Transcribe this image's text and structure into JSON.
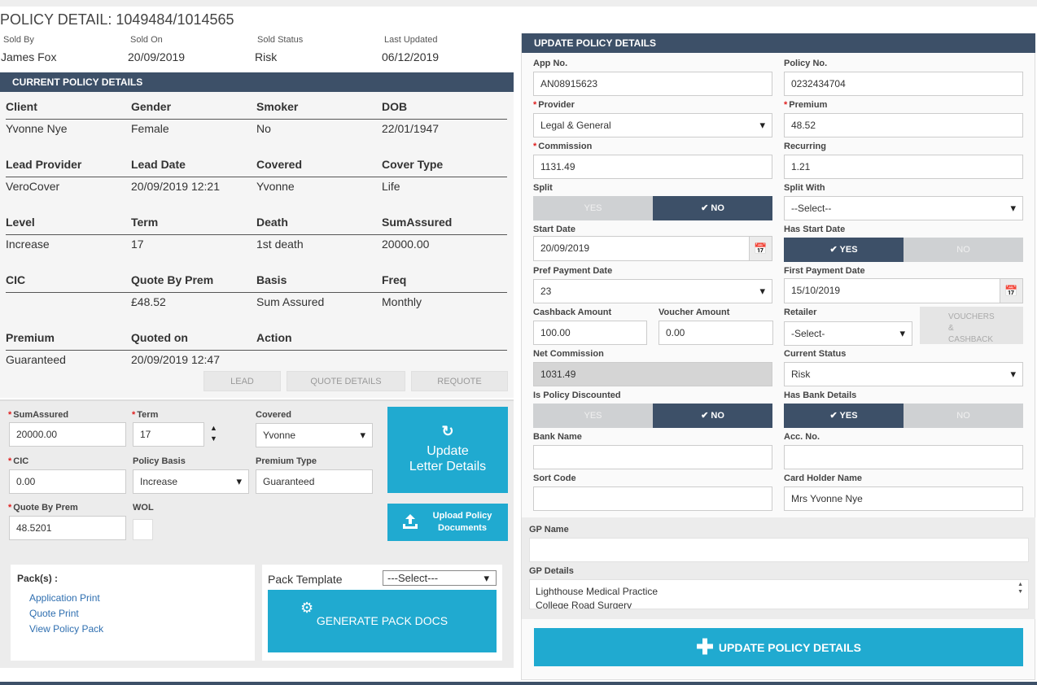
{
  "header": {
    "title": "POLICY DETAIL: 1049484/1014565",
    "meta": [
      {
        "label": "Sold By",
        "value": "James Fox"
      },
      {
        "label": "Sold On",
        "value": "20/09/2019"
      },
      {
        "label": "Sold Status",
        "value": "Risk"
      },
      {
        "label": "Last Updated",
        "value": "06/12/2019"
      }
    ]
  },
  "current": {
    "heading": "CURRENT POLICY DETAILS",
    "rows": [
      {
        "labels": [
          "Client",
          "Gender",
          "Smoker",
          "DOB"
        ],
        "values": [
          "Yvonne Nye",
          "Female",
          "No",
          "22/01/1947"
        ]
      },
      {
        "labels": [
          "Lead Provider",
          "Lead Date",
          "Covered",
          "Cover Type"
        ],
        "values": [
          "VeroCover",
          "20/09/2019 12:21",
          "Yvonne",
          "Life"
        ]
      },
      {
        "labels": [
          "Level",
          "Term",
          "Death",
          "SumAssured"
        ],
        "values": [
          "Increase",
          "17",
          "1st death",
          "20000.00"
        ]
      },
      {
        "labels": [
          "CIC",
          "Quote By Prem",
          "Basis",
          "Freq"
        ],
        "values": [
          "",
          "£48.52",
          "Sum Assured",
          "Monthly"
        ]
      },
      {
        "labels": [
          "Premium",
          "Quoted on",
          "Action",
          ""
        ],
        "values": [
          "Guaranteed",
          "20/09/2019 12:47",
          "",
          ""
        ]
      }
    ],
    "buttons": {
      "lead": "LEAD",
      "quote_details": "QUOTE DETAILS",
      "requote": "REQUOTE"
    }
  },
  "letter_form": {
    "sum_assured_label": "SumAssured",
    "sum_assured": "20000.00",
    "term_label": "Term",
    "term": "17",
    "covered_label": "Covered",
    "covered": "Yvonne",
    "cic_label": "CIC",
    "cic": "0.00",
    "policy_basis_label": "Policy Basis",
    "policy_basis": "Increase",
    "premium_type_label": "Premium Type",
    "premium_type": "Guaranteed",
    "quote_by_prem_label": "Quote By Prem",
    "quote_by_prem": "48.5201",
    "wol_label": "WOL",
    "update_letter_line1": "Update",
    "update_letter_line2": "Letter Details",
    "upload_line1": "Upload Policy",
    "upload_line2": "Documents"
  },
  "packs": {
    "title": "Pack(s) :",
    "links": [
      "Application Print",
      "Quote Print",
      "View Policy Pack"
    ],
    "template_label": "Pack Template",
    "template_select": "---Select---",
    "generate": "GENERATE PACK DOCS"
  },
  "update": {
    "heading": "UPDATE POLICY DETAILS",
    "app_no_label": "App No.",
    "app_no": "AN08915623",
    "policy_no_label": "Policy No.",
    "policy_no": "0232434704",
    "provider_label": "Provider",
    "provider": "Legal & General",
    "premium_label": "Premium",
    "premium": "48.52",
    "commission_label": "Commission",
    "commission": "1131.49",
    "recurring_label": "Recurring",
    "recurring": "1.21",
    "split_label": "Split",
    "yes": "YES",
    "no": "NO",
    "split_with_label": "Split With",
    "split_with": "--Select--",
    "start_date_label": "Start Date",
    "start_date": "20/09/2019",
    "has_start_date_label": "Has Start Date",
    "pref_payment_label": "Pref Payment Date",
    "pref_payment": "23",
    "first_payment_label": "First Payment Date",
    "first_payment": "15/10/2019",
    "cashback_label": "Cashback Amount",
    "cashback": "100.00",
    "voucher_label": "Voucher Amount",
    "voucher": "0.00",
    "retailer_label": "Retailer",
    "retailer": "-Select-",
    "vouchers_btn_l1": "VOUCHERS",
    "vouchers_btn_l2": "&",
    "vouchers_btn_l3": "CASHBACK",
    "net_commission_label": "Net Commission",
    "net_commission": "1031.49",
    "current_status_label": "Current Status",
    "current_status": "Risk",
    "discounted_label": "Is Policy Discounted",
    "has_bank_label": "Has Bank Details",
    "bank_name_label": "Bank Name",
    "bank_name": "",
    "acc_no_label": "Acc. No.",
    "acc_no": "",
    "sort_code_label": "Sort Code",
    "sort_code": "",
    "card_holder_label": "Card Holder Name",
    "card_holder": "Mrs Yvonne Nye",
    "gp_name_label": "GP Name",
    "gp_name": "",
    "gp_details_label": "GP Details",
    "gp_details_line1": "Lighthouse Medical Practice",
    "gp_details_line2": "College Road Surgery",
    "submit": "UPDATE POLICY DETAILS"
  },
  "colors": {
    "header_bar": "#3d5068",
    "accent": "#20aad0",
    "required": "#e02020"
  }
}
